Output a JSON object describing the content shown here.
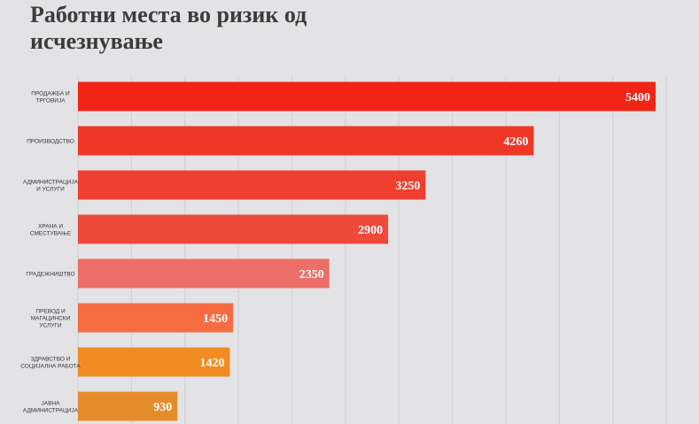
{
  "title": "Работни места во ризик од исчезнување",
  "chart_data": {
    "type": "bar",
    "orientation": "horizontal",
    "title": "Работни места во ризик од исчезнување",
    "grid": true,
    "xlim": [
      0,
      6000
    ],
    "categories": [
      [
        "ПРОДАЖБА И",
        "ТРГОВИЈА"
      ],
      [
        "ПРОИЗВОДСТВО"
      ],
      [
        "АДМИНИСТРАЦИЈА",
        "И УСЛУГИ"
      ],
      [
        "ХРАНА И",
        "СМЕСТУВАЊЕ"
      ],
      [
        "ГРАДЕЖНИШТВО"
      ],
      [
        "ПРЕВОД И",
        "МАГАЦИНСКИ",
        "УСЛУГИ"
      ],
      [
        "ЗДРАВСТВО И",
        "СОЦИЈАЛНА РАБОТА"
      ],
      [
        "ЈАВНА",
        "АДМИНИСТРАЦИЈА"
      ]
    ],
    "values": [
      5400,
      4260,
      3250,
      2900,
      2350,
      1450,
      1420,
      930
    ],
    "value_labels": [
      "5400",
      "4260",
      "3250",
      "2900",
      "2350",
      "1450",
      "1420",
      "930"
    ],
    "colors": [
      "#f22416",
      "#ef3728",
      "#f03f2f",
      "#ed4a3c",
      "#ec6e66",
      "#f56c43",
      "#f28c22",
      "#e68b2c"
    ]
  }
}
